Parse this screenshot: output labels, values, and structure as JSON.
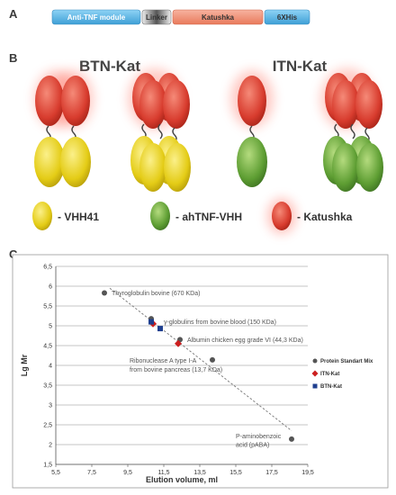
{
  "panels": {
    "a": "A",
    "b": "B",
    "c": "C"
  },
  "construct": {
    "segments": [
      {
        "label": "Anti-TNF module",
        "color": "#5bb8e6"
      },
      {
        "label": "Linker",
        "color": "#9a9a9a"
      },
      {
        "label": "Katushka",
        "color": "#f08a6e"
      },
      {
        "label": "6XHis",
        "color": "#5bb8e6"
      }
    ]
  },
  "diagram": {
    "left_title": "BTN-Kat",
    "right_title": "ITN-Kat",
    "legend": [
      {
        "label": "- VHH41",
        "color": "#e8d21a"
      },
      {
        "label": "- ahTNF-VHH",
        "color": "#6aa83a"
      },
      {
        "label": "- Katushka",
        "color": "#e0463a"
      }
    ]
  },
  "chart_data": {
    "type": "scatter",
    "xlabel": "Elution volume, ml",
    "ylabel": "Lg Mr",
    "xlim": [
      5.5,
      19.5
    ],
    "ylim": [
      1.5,
      6.5
    ],
    "xticks": [
      "5,5",
      "7,5",
      "9,5",
      "11,5",
      "13,5",
      "15,5",
      "17,5",
      "19,5"
    ],
    "yticks": [
      "1,5",
      "2",
      "2,5",
      "3",
      "3,5",
      "4",
      "4,5",
      "5",
      "5,5",
      "6",
      "6,5"
    ],
    "grid": true,
    "legend_position": "right",
    "series": [
      {
        "name": "Protein Standart Mix",
        "marker": "circle",
        "color": "#555555",
        "x": [
          8.2,
          10.8,
          12.4,
          14.2,
          18.6
        ],
        "y": [
          5.83,
          5.18,
          4.65,
          4.14,
          2.14
        ]
      },
      {
        "name": "ITN-Kat",
        "marker": "diamond",
        "color": "#cc1f1f",
        "x": [
          10.9,
          12.3
        ],
        "y": [
          5.05,
          4.55
        ]
      },
      {
        "name": "BTN-Kat",
        "marker": "square",
        "color": "#1f3f8f",
        "x": [
          10.8,
          11.3
        ],
        "y": [
          5.1,
          4.93
        ]
      }
    ],
    "trendline": {
      "x": [
        8.5,
        18.6
      ],
      "y": [
        5.95,
        2.35
      ]
    },
    "annotations": [
      {
        "text": "Thyroglobulin bovine (670 KDa)",
        "x": 8.6,
        "y": 5.83
      },
      {
        "text": "γ-globulins from bovine blood (150 KDa)",
        "x": 11.5,
        "y": 5.1
      },
      {
        "text": "Albumin chicken egg grade VI (44,3 KDa)",
        "x": 12.8,
        "y": 4.65
      },
      {
        "text": "Ribonuclease A type I-A",
        "x": 9.6,
        "y": 4.13
      },
      {
        "text": "from bovine pancreas (13,7 KDa)",
        "x": 9.6,
        "y": 3.9
      },
      {
        "text": "P-aminobenzoic",
        "x": 15.5,
        "y": 2.22
      },
      {
        "text": "acid (pABA)",
        "x": 15.5,
        "y": 2.0
      }
    ]
  }
}
